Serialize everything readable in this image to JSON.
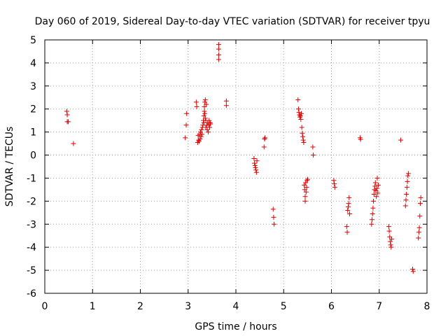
{
  "chart_data": {
    "type": "scatter",
    "title": "Day 060 of 2019, Sidereal Day-to-day VTEC variation (SDTVAR) for receiver tpyu",
    "xlabel": "GPS time / hours",
    "ylabel": "SDTVAR / TECUs",
    "xlim": [
      0,
      8
    ],
    "ylim": [
      -6,
      5
    ],
    "xticks": [
      0,
      1,
      2,
      3,
      4,
      5,
      6,
      7,
      8
    ],
    "yticks": [
      5,
      4,
      3,
      2,
      1,
      0,
      -1,
      -2,
      -3,
      -4,
      -5,
      -6
    ],
    "grid": true,
    "marker": "+",
    "color": "#dd0000",
    "series": [
      {
        "name": "SDTVAR",
        "points": [
          [
            0.46,
            1.9
          ],
          [
            0.47,
            1.75
          ],
          [
            0.47,
            1.45
          ],
          [
            0.49,
            1.45
          ],
          [
            0.6,
            0.5
          ],
          [
            2.94,
            0.75
          ],
          [
            2.96,
            1.3
          ],
          [
            2.97,
            1.8
          ],
          [
            3.17,
            2.3
          ],
          [
            3.18,
            2.1
          ],
          [
            3.2,
            0.55
          ],
          [
            3.21,
            0.85
          ],
          [
            3.22,
            0.65
          ],
          [
            3.23,
            0.6
          ],
          [
            3.24,
            0.9
          ],
          [
            3.25,
            0.7
          ],
          [
            3.26,
            1.0
          ],
          [
            3.27,
            0.8
          ],
          [
            3.28,
            1.1
          ],
          [
            3.29,
            0.9
          ],
          [
            3.3,
            1.2
          ],
          [
            3.31,
            1.3
          ],
          [
            3.32,
            1.5
          ],
          [
            3.33,
            1.4
          ],
          [
            3.33,
            1.7
          ],
          [
            3.34,
            1.9
          ],
          [
            3.34,
            2.1
          ],
          [
            3.35,
            2.3
          ],
          [
            3.35,
            1.8
          ],
          [
            3.36,
            1.6
          ],
          [
            3.36,
            2.4
          ],
          [
            3.37,
            1.5
          ],
          [
            3.37,
            1.2
          ],
          [
            3.38,
            2.2
          ],
          [
            3.39,
            1.3
          ],
          [
            3.4,
            1.1
          ],
          [
            3.41,
            1.4
          ],
          [
            3.42,
            1.0
          ],
          [
            3.43,
            1.3
          ],
          [
            3.44,
            1.5
          ],
          [
            3.45,
            1.2
          ],
          [
            3.46,
            1.4
          ],
          [
            3.47,
            1.35
          ],
          [
            3.64,
            4.8
          ],
          [
            3.64,
            4.6
          ],
          [
            3.64,
            4.35
          ],
          [
            3.64,
            4.15
          ],
          [
            3.8,
            2.35
          ],
          [
            3.8,
            2.15
          ],
          [
            4.38,
            -0.15
          ],
          [
            4.39,
            -0.35
          ],
          [
            4.4,
            -0.45
          ],
          [
            4.41,
            -0.55
          ],
          [
            4.42,
            -0.65
          ],
          [
            4.43,
            -0.75
          ],
          [
            4.44,
            -0.25
          ],
          [
            4.6,
            0.7
          ],
          [
            4.61,
            0.75
          ],
          [
            4.59,
            0.35
          ],
          [
            4.78,
            -2.35
          ],
          [
            4.79,
            -2.7
          ],
          [
            4.8,
            -3.0
          ],
          [
            5.3,
            2.4
          ],
          [
            5.31,
            2.0
          ],
          [
            5.32,
            1.85
          ],
          [
            5.33,
            1.75
          ],
          [
            5.34,
            1.65
          ],
          [
            5.35,
            1.7
          ],
          [
            5.36,
            1.55
          ],
          [
            5.37,
            1.8
          ],
          [
            5.38,
            1.2
          ],
          [
            5.39,
            0.95
          ],
          [
            5.4,
            0.8
          ],
          [
            5.41,
            0.65
          ],
          [
            5.42,
            0.55
          ],
          [
            5.43,
            -1.3
          ],
          [
            5.44,
            -1.5
          ],
          [
            5.45,
            -1.8
          ],
          [
            5.45,
            -2.0
          ],
          [
            5.46,
            -1.2
          ],
          [
            5.47,
            -1.6
          ],
          [
            5.48,
            -1.4
          ],
          [
            5.49,
            -1.1
          ],
          [
            5.5,
            -1.05
          ],
          [
            5.61,
            0.35
          ],
          [
            5.62,
            0.0
          ],
          [
            6.05,
            -1.1
          ],
          [
            6.06,
            -1.25
          ],
          [
            6.07,
            -1.4
          ],
          [
            6.32,
            -3.1
          ],
          [
            6.33,
            -3.35
          ],
          [
            6.34,
            -2.4
          ],
          [
            6.35,
            -2.25
          ],
          [
            6.36,
            -2.1
          ],
          [
            6.37,
            -1.85
          ],
          [
            6.38,
            -2.55
          ],
          [
            6.6,
            0.75
          ],
          [
            6.61,
            0.68
          ],
          [
            6.84,
            -3.0
          ],
          [
            6.85,
            -2.8
          ],
          [
            6.86,
            -2.55
          ],
          [
            6.87,
            -2.3
          ],
          [
            6.88,
            -2.0
          ],
          [
            6.89,
            -1.7
          ],
          [
            6.9,
            -1.5
          ],
          [
            6.91,
            -1.35
          ],
          [
            6.92,
            -1.2
          ],
          [
            6.93,
            -1.55
          ],
          [
            6.94,
            -1.8
          ],
          [
            6.95,
            -1.45
          ],
          [
            6.96,
            -1.0
          ],
          [
            6.97,
            -1.65
          ],
          [
            6.98,
            -1.3
          ],
          [
            7.2,
            -3.1
          ],
          [
            7.21,
            -3.3
          ],
          [
            7.22,
            -3.55
          ],
          [
            7.23,
            -3.75
          ],
          [
            7.24,
            -3.9
          ],
          [
            7.25,
            -4.0
          ],
          [
            7.26,
            -3.65
          ],
          [
            7.45,
            0.65
          ],
          [
            7.55,
            -2.2
          ],
          [
            7.56,
            -1.95
          ],
          [
            7.57,
            -1.7
          ],
          [
            7.58,
            -1.4
          ],
          [
            7.59,
            -1.15
          ],
          [
            7.6,
            -0.9
          ],
          [
            7.61,
            -0.8
          ],
          [
            7.7,
            -4.95
          ],
          [
            7.71,
            -5.05
          ],
          [
            7.82,
            -3.6
          ],
          [
            7.83,
            -3.35
          ],
          [
            7.84,
            -3.15
          ],
          [
            7.85,
            -2.65
          ],
          [
            7.86,
            -2.1
          ],
          [
            7.87,
            -1.85
          ]
        ]
      }
    ]
  }
}
